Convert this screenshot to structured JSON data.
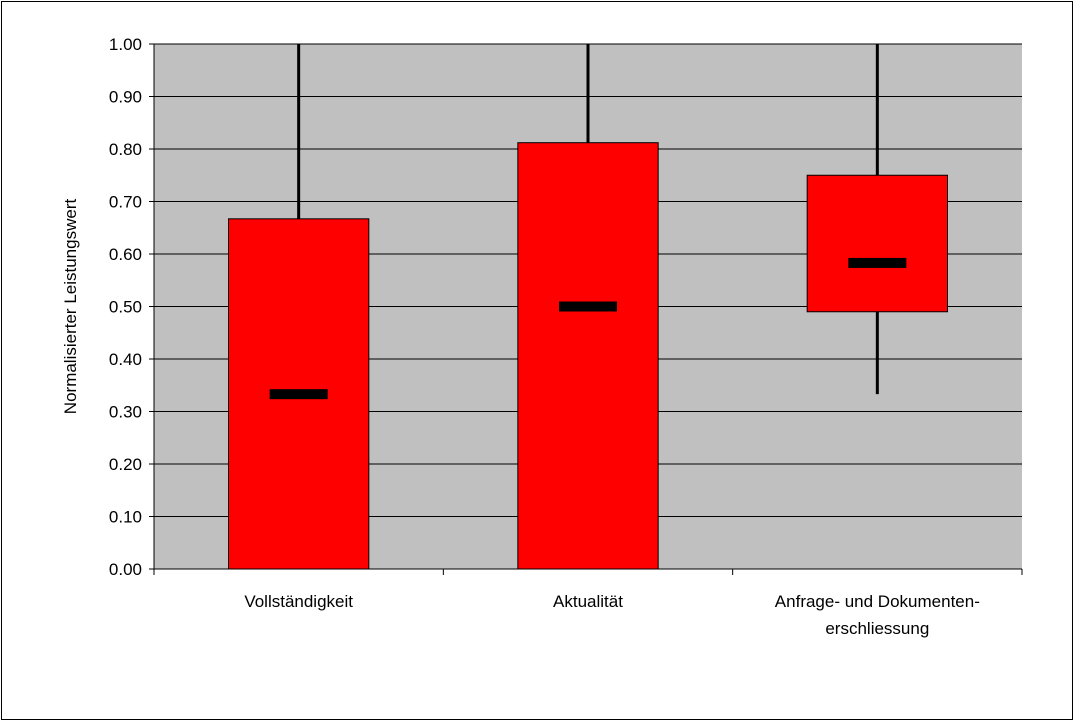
{
  "chart_data": {
    "type": "boxplot",
    "ylabel": "Normalisierter Leistungswert",
    "xlabel": "",
    "ylim": [
      0,
      1
    ],
    "yticks": [
      "0.00",
      "0.10",
      "0.20",
      "0.30",
      "0.40",
      "0.50",
      "0.60",
      "0.70",
      "0.80",
      "0.90",
      "1.00"
    ],
    "grid": true,
    "plot_background": "#c0c0c0",
    "box_color": "#ff0000",
    "categories": [
      {
        "label_lines": [
          "Vollständigkeit"
        ],
        "min": 0.0,
        "q1": 0.0,
        "median": 0.333,
        "q3": 0.667,
        "max": 1.0
      },
      {
        "label_lines": [
          "Aktualität"
        ],
        "min": 0.0,
        "q1": 0.0,
        "median": 0.5,
        "q3": 0.812,
        "max": 1.0
      },
      {
        "label_lines": [
          "Anfrage- und Dokumenten-",
          "erschliessung"
        ],
        "min": 0.333,
        "q1": 0.49,
        "median": 0.583,
        "q3": 0.75,
        "max": 1.0
      }
    ]
  }
}
